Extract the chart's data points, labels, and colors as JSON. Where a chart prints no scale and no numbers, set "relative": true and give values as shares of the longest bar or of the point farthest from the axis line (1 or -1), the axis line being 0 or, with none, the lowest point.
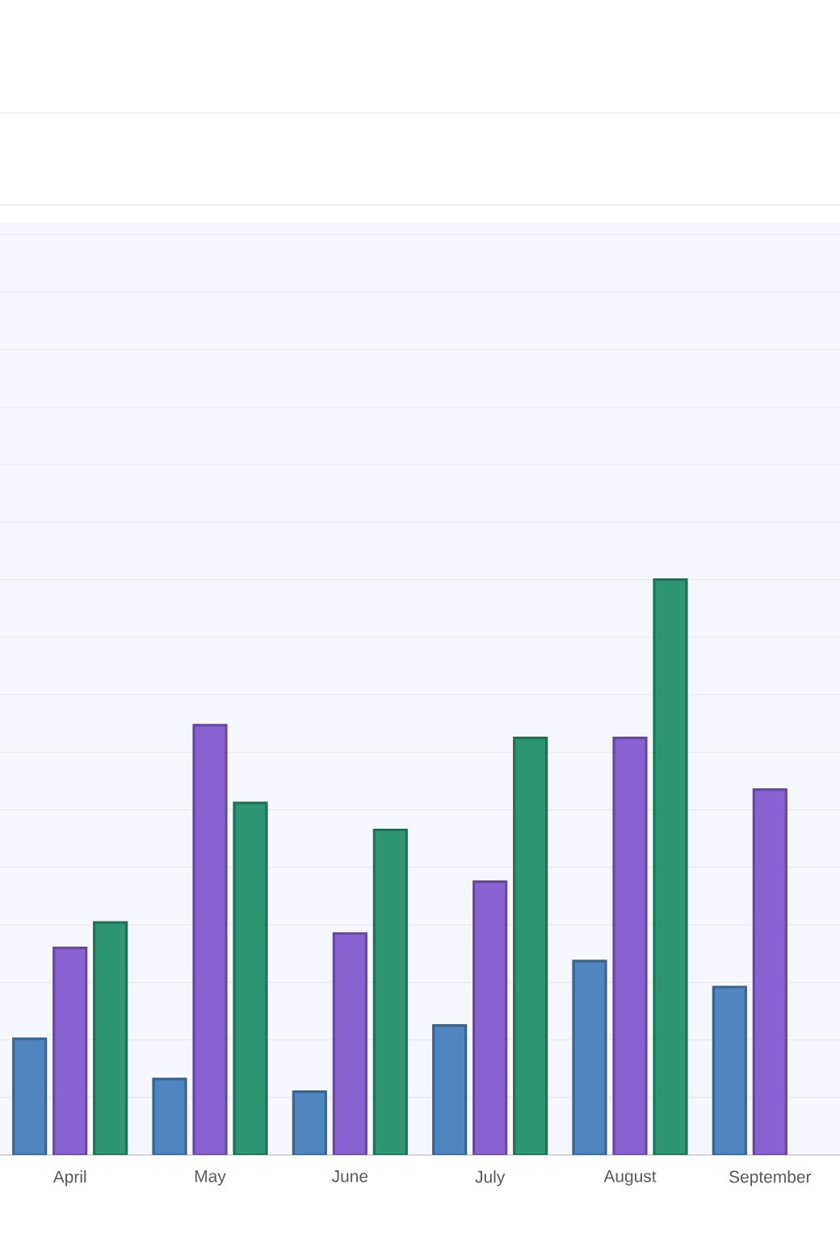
{
  "chart_data": {
    "type": "bar",
    "relative": true,
    "grid": "y",
    "categories": [
      "April",
      "May",
      "June",
      "July",
      "August",
      "September"
    ],
    "series": [
      {
        "color": "#4f86c0",
        "values": [
          0.202,
          0.132,
          0.11,
          0.225,
          0.337,
          0.292
        ]
      },
      {
        "color": "#8a63d2",
        "values": [
          0.36,
          0.747,
          0.385,
          0.475,
          0.725,
          0.635
        ]
      },
      {
        "color": "#2e9673",
        "values": [
          0.404,
          0.612,
          0.565,
          0.725,
          1,
          null
        ]
      }
    ]
  }
}
